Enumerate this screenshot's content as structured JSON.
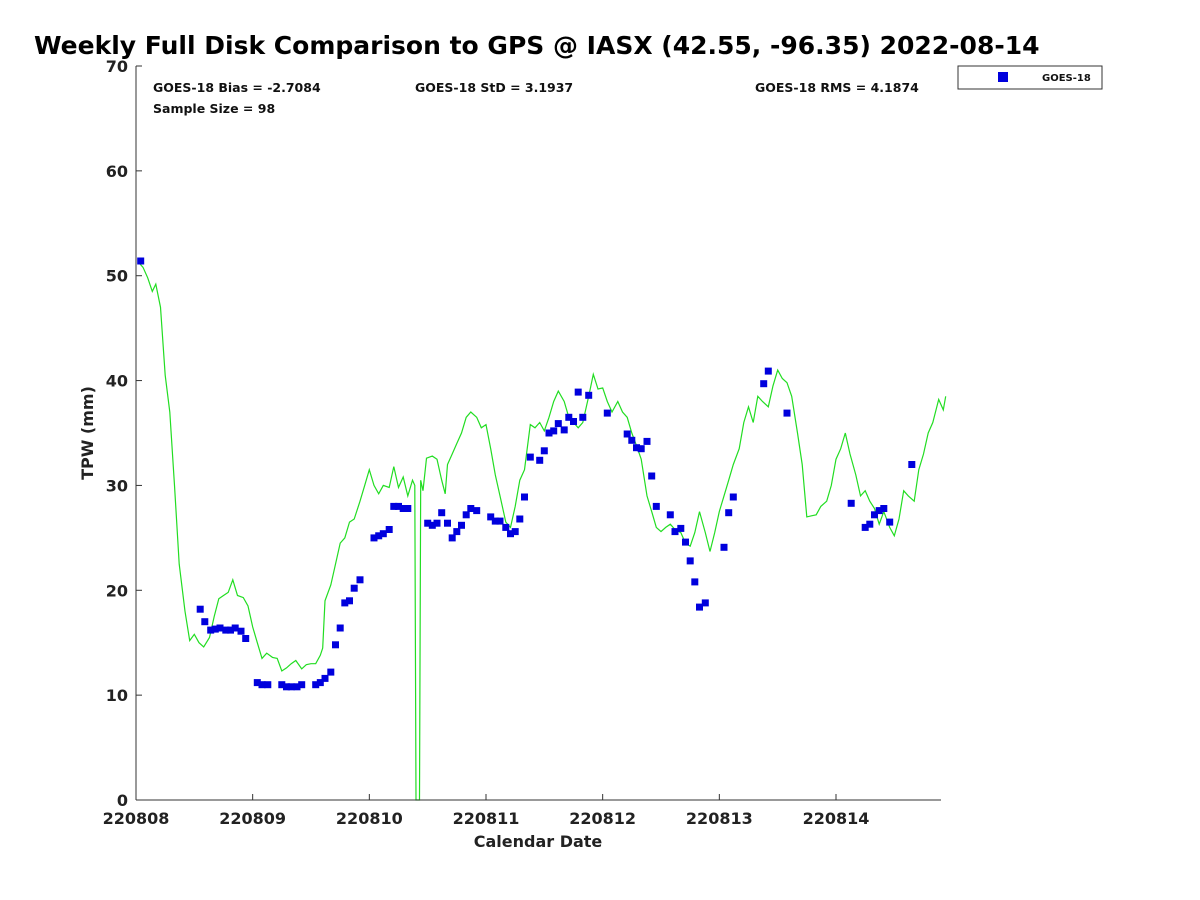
{
  "chart_data": {
    "type": "scatter",
    "title": "Weekly Full Disk Comparison to GPS @ IASX (42.55, -96.35) 2022-08-14",
    "xlabel": "Calendar Date",
    "ylabel": "TPW (mm)",
    "xlim": [
      220808,
      220814.9
    ],
    "ylim": [
      0,
      70
    ],
    "x_ticks": [
      "220808",
      "220809",
      "220810",
      "220811",
      "220812",
      "220813",
      "220814"
    ],
    "y_ticks": [
      "0",
      "10",
      "20",
      "30",
      "40",
      "50",
      "60",
      "70"
    ],
    "legend_position": "top-right, outside plot",
    "stats": {
      "bias": "GOES-18 Bias = -2.7084",
      "std": "GOES-18 StD = 3.1937",
      "rms": "GOES-18 RMS = 4.1874",
      "sample_size": "Sample Size = 98"
    },
    "colors": {
      "goes": "#0000dd",
      "gps_line": "#22dd22"
    },
    "series": [
      {
        "name": "GOES-18",
        "kind": "scatter",
        "marker": "square",
        "color": "#0000dd",
        "points": [
          [
            220808.04,
            51.4
          ],
          [
            220808.55,
            18.2
          ],
          [
            220808.59,
            17.0
          ],
          [
            220808.64,
            16.2
          ],
          [
            220808.68,
            16.3
          ],
          [
            220808.72,
            16.4
          ],
          [
            220808.77,
            16.2
          ],
          [
            220808.81,
            16.2
          ],
          [
            220808.85,
            16.4
          ],
          [
            220808.9,
            16.1
          ],
          [
            220808.94,
            15.4
          ],
          [
            220809.04,
            11.2
          ],
          [
            220809.08,
            11.0
          ],
          [
            220809.13,
            11.0
          ],
          [
            220809.25,
            11.0
          ],
          [
            220809.29,
            10.8
          ],
          [
            220809.33,
            10.8
          ],
          [
            220809.38,
            10.8
          ],
          [
            220809.42,
            11.0
          ],
          [
            220809.54,
            11.0
          ],
          [
            220809.58,
            11.2
          ],
          [
            220809.62,
            11.6
          ],
          [
            220809.67,
            12.2
          ],
          [
            220809.71,
            14.8
          ],
          [
            220809.75,
            16.4
          ],
          [
            220809.79,
            18.8
          ],
          [
            220809.83,
            19.0
          ],
          [
            220809.87,
            20.2
          ],
          [
            220809.92,
            21.0
          ],
          [
            220810.04,
            25.0
          ],
          [
            220810.08,
            25.2
          ],
          [
            220810.12,
            25.4
          ],
          [
            220810.17,
            25.8
          ],
          [
            220810.21,
            28.0
          ],
          [
            220810.25,
            28.0
          ],
          [
            220810.29,
            27.8
          ],
          [
            220810.33,
            27.8
          ],
          [
            220810.5,
            26.4
          ],
          [
            220810.54,
            26.2
          ],
          [
            220810.58,
            26.4
          ],
          [
            220810.62,
            27.4
          ],
          [
            220810.67,
            26.4
          ],
          [
            220810.71,
            25.0
          ],
          [
            220810.75,
            25.6
          ],
          [
            220810.79,
            26.2
          ],
          [
            220810.83,
            27.2
          ],
          [
            220810.87,
            27.8
          ],
          [
            220810.92,
            27.6
          ],
          [
            220811.04,
            27.0
          ],
          [
            220811.08,
            26.6
          ],
          [
            220811.12,
            26.6
          ],
          [
            220811.17,
            26.0
          ],
          [
            220811.21,
            25.4
          ],
          [
            220811.25,
            25.6
          ],
          [
            220811.29,
            26.8
          ],
          [
            220811.33,
            28.9
          ],
          [
            220811.38,
            32.7
          ],
          [
            220811.46,
            32.4
          ],
          [
            220811.5,
            33.3
          ],
          [
            220811.54,
            35.0
          ],
          [
            220811.58,
            35.2
          ],
          [
            220811.62,
            35.9
          ],
          [
            220811.67,
            35.3
          ],
          [
            220811.71,
            36.5
          ],
          [
            220811.75,
            36.1
          ],
          [
            220811.79,
            38.9
          ],
          [
            220811.83,
            36.5
          ],
          [
            220811.88,
            38.6
          ],
          [
            220812.04,
            36.9
          ],
          [
            220812.21,
            34.9
          ],
          [
            220812.25,
            34.3
          ],
          [
            220812.29,
            33.6
          ],
          [
            220812.33,
            33.5
          ],
          [
            220812.38,
            34.2
          ],
          [
            220812.42,
            30.9
          ],
          [
            220812.46,
            28.0
          ],
          [
            220812.58,
            27.2
          ],
          [
            220812.62,
            25.6
          ],
          [
            220812.67,
            25.9
          ],
          [
            220812.71,
            24.6
          ],
          [
            220812.75,
            22.8
          ],
          [
            220812.79,
            20.8
          ],
          [
            220812.83,
            18.4
          ],
          [
            220812.88,
            18.8
          ],
          [
            220813.04,
            24.1
          ],
          [
            220813.08,
            27.4
          ],
          [
            220813.12,
            28.9
          ],
          [
            220813.38,
            39.7
          ],
          [
            220813.42,
            40.9
          ],
          [
            220813.58,
            36.9
          ],
          [
            220814.13,
            28.3
          ],
          [
            220814.25,
            26.0
          ],
          [
            220814.29,
            26.3
          ],
          [
            220814.33,
            27.2
          ],
          [
            220814.37,
            27.6
          ],
          [
            220814.41,
            27.8
          ],
          [
            220814.46,
            26.5
          ],
          [
            220814.65,
            32.0
          ]
        ]
      },
      {
        "kind": "line",
        "color": "#22dd22",
        "points": [
          [
            220808.02,
            51.3
          ],
          [
            220808.06,
            50.8
          ],
          [
            220808.1,
            49.8
          ],
          [
            220808.14,
            48.5
          ],
          [
            220808.17,
            49.2
          ],
          [
            220808.21,
            47.0
          ],
          [
            220808.25,
            40.5
          ],
          [
            220808.29,
            37.0
          ],
          [
            220808.33,
            30.0
          ],
          [
            220808.37,
            22.5
          ],
          [
            220808.42,
            18.0
          ],
          [
            220808.46,
            15.2
          ],
          [
            220808.5,
            15.8
          ],
          [
            220808.54,
            15.0
          ],
          [
            220808.58,
            14.6
          ],
          [
            220808.63,
            15.5
          ],
          [
            220808.67,
            17.5
          ],
          [
            220808.71,
            19.2
          ],
          [
            220808.75,
            19.5
          ],
          [
            220808.79,
            19.8
          ],
          [
            220808.83,
            21.0
          ],
          [
            220808.87,
            19.5
          ],
          [
            220808.92,
            19.3
          ],
          [
            220808.96,
            18.5
          ],
          [
            220809.0,
            16.5
          ],
          [
            220809.04,
            15.0
          ],
          [
            220809.08,
            13.5
          ],
          [
            220809.12,
            14.0
          ],
          [
            220809.17,
            13.6
          ],
          [
            220809.21,
            13.5
          ],
          [
            220809.25,
            12.3
          ],
          [
            220809.29,
            12.6
          ],
          [
            220809.33,
            13.0
          ],
          [
            220809.37,
            13.3
          ],
          [
            220809.42,
            12.5
          ],
          [
            220809.46,
            12.9
          ],
          [
            220809.5,
            13.0
          ],
          [
            220809.54,
            13.0
          ],
          [
            220809.58,
            13.8
          ],
          [
            220809.6,
            14.5
          ],
          [
            220809.62,
            19.0
          ],
          [
            220809.67,
            20.5
          ],
          [
            220809.71,
            22.5
          ],
          [
            220809.75,
            24.5
          ],
          [
            220809.79,
            25.0
          ],
          [
            220809.83,
            26.5
          ],
          [
            220809.87,
            26.8
          ],
          [
            220809.92,
            28.5
          ],
          [
            220809.96,
            30.0
          ],
          [
            220810.0,
            31.5
          ],
          [
            220810.04,
            30.0
          ],
          [
            220810.08,
            29.2
          ],
          [
            220810.12,
            30.0
          ],
          [
            220810.17,
            29.8
          ],
          [
            220810.21,
            31.8
          ],
          [
            220810.25,
            29.8
          ],
          [
            220810.29,
            30.8
          ],
          [
            220810.33,
            29.0
          ],
          [
            220810.37,
            30.5
          ],
          [
            220810.39,
            30.0
          ],
          [
            220810.4,
            0
          ],
          [
            220810.43,
            0
          ],
          [
            220810.44,
            30.5
          ],
          [
            220810.46,
            29.5
          ],
          [
            220810.49,
            32.6
          ],
          [
            220810.54,
            32.8
          ],
          [
            220810.58,
            32.5
          ],
          [
            220810.62,
            30.5
          ],
          [
            220810.65,
            29.2
          ],
          [
            220810.67,
            32.0
          ],
          [
            220810.71,
            33.0
          ],
          [
            220810.75,
            34.0
          ],
          [
            220810.79,
            35.0
          ],
          [
            220810.83,
            36.5
          ],
          [
            220810.87,
            37.0
          ],
          [
            220810.92,
            36.5
          ],
          [
            220810.96,
            35.5
          ],
          [
            220811.0,
            35.8
          ],
          [
            220811.04,
            33.5
          ],
          [
            220811.08,
            31.0
          ],
          [
            220811.12,
            29.0
          ],
          [
            220811.17,
            26.5
          ],
          [
            220811.21,
            26.0
          ],
          [
            220811.25,
            28.0
          ],
          [
            220811.29,
            30.5
          ],
          [
            220811.33,
            31.5
          ],
          [
            220811.38,
            35.8
          ],
          [
            220811.42,
            35.5
          ],
          [
            220811.46,
            36.0
          ],
          [
            220811.5,
            35.2
          ],
          [
            220811.54,
            36.5
          ],
          [
            220811.58,
            38.0
          ],
          [
            220811.62,
            39.0
          ],
          [
            220811.67,
            38.0
          ],
          [
            220811.71,
            36.5
          ],
          [
            220811.75,
            36.0
          ],
          [
            220811.79,
            35.5
          ],
          [
            220811.83,
            36.0
          ],
          [
            220811.88,
            38.5
          ],
          [
            220811.92,
            40.6
          ],
          [
            220811.96,
            39.2
          ],
          [
            220812.0,
            39.3
          ],
          [
            220812.04,
            38.0
          ],
          [
            220812.08,
            37.0
          ],
          [
            220812.13,
            38.0
          ],
          [
            220812.17,
            37.0
          ],
          [
            220812.21,
            36.5
          ],
          [
            220812.25,
            35.0
          ],
          [
            220812.29,
            33.8
          ],
          [
            220812.33,
            32.5
          ],
          [
            220812.38,
            29.0
          ],
          [
            220812.42,
            27.5
          ],
          [
            220812.46,
            26.0
          ],
          [
            220812.5,
            25.6
          ],
          [
            220812.54,
            26.0
          ],
          [
            220812.58,
            26.3
          ],
          [
            220812.62,
            25.8
          ],
          [
            220812.67,
            25.5
          ],
          [
            220812.71,
            24.5
          ],
          [
            220812.75,
            24.2
          ],
          [
            220812.79,
            25.5
          ],
          [
            220812.83,
            27.5
          ],
          [
            220812.88,
            25.5
          ],
          [
            220812.92,
            23.7
          ],
          [
            220812.96,
            25.5
          ],
          [
            220813.0,
            27.5
          ],
          [
            220813.04,
            29.0
          ],
          [
            220813.08,
            30.5
          ],
          [
            220813.12,
            32.0
          ],
          [
            220813.17,
            33.5
          ],
          [
            220813.21,
            36.0
          ],
          [
            220813.25,
            37.5
          ],
          [
            220813.29,
            36.0
          ],
          [
            220813.33,
            38.5
          ],
          [
            220813.37,
            38.0
          ],
          [
            220813.42,
            37.5
          ],
          [
            220813.46,
            39.5
          ],
          [
            220813.5,
            41.0
          ],
          [
            220813.54,
            40.2
          ],
          [
            220813.58,
            39.8
          ],
          [
            220813.62,
            38.5
          ],
          [
            220813.67,
            35.0
          ],
          [
            220813.71,
            32.0
          ],
          [
            220813.75,
            27.0
          ],
          [
            220813.79,
            27.1
          ],
          [
            220813.83,
            27.2
          ],
          [
            220813.87,
            28.0
          ],
          [
            220813.92,
            28.5
          ],
          [
            220813.96,
            30.0
          ],
          [
            220814.0,
            32.5
          ],
          [
            220814.04,
            33.5
          ],
          [
            220814.08,
            35.0
          ],
          [
            220814.12,
            33.0
          ],
          [
            220814.17,
            31.0
          ],
          [
            220814.21,
            29.0
          ],
          [
            220814.25,
            29.5
          ],
          [
            220814.29,
            28.5
          ],
          [
            220814.33,
            27.8
          ],
          [
            220814.37,
            26.3
          ],
          [
            220814.41,
            27.5
          ],
          [
            220814.46,
            26.0
          ],
          [
            220814.5,
            25.2
          ],
          [
            220814.54,
            26.8
          ],
          [
            220814.58,
            29.5
          ],
          [
            220814.62,
            29.0
          ],
          [
            220814.67,
            28.5
          ],
          [
            220814.71,
            31.5
          ],
          [
            220814.75,
            33.0
          ],
          [
            220814.79,
            35.0
          ],
          [
            220814.83,
            36.0
          ],
          [
            220814.88,
            38.2
          ],
          [
            220814.92,
            37.2
          ],
          [
            220814.94,
            38.5
          ]
        ]
      }
    ]
  }
}
